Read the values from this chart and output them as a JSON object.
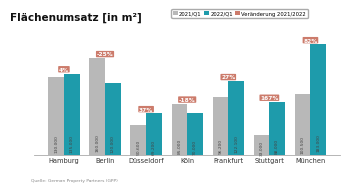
{
  "title": "Flächenumsatz [in m²]",
  "categories": [
    "Hamburg",
    "Berlin",
    "Düsseldorf",
    "Köln",
    "Frankfurt",
    "Stuttgart",
    "München"
  ],
  "values_2021": [
    130000,
    160000,
    50600,
    85000,
    96200,
    33000,
    100500
  ],
  "values_2022": [
    135000,
    120000,
    69200,
    70000,
    122100,
    88000,
    183000
  ],
  "changes": [
    "4%",
    "-25%",
    "37%",
    "-18%",
    "27%",
    "167%",
    "82%"
  ],
  "color_2021": "#b8b8b8",
  "color_2022": "#1e9bab",
  "change_bg": "#cc7b6b",
  "change_text": "#ffffff",
  "bg_color": "#ffffff",
  "legend_2021": "2021/Q1",
  "legend_2022": "2022/Q1",
  "legend_change": "Veränderung 2021/2022",
  "source": "Quelle: German Property Partners (GPP)",
  "bar_labels_2021": [
    "130.000",
    "160.000",
    "50.600",
    "85.000",
    "96.200",
    "33.000",
    "100.500"
  ],
  "bar_labels_2022": [
    "135.000",
    "120.000",
    "69.200",
    "70.000",
    "122.100",
    "88.000",
    "183.000"
  ],
  "ylim": [
    0,
    210000
  ]
}
